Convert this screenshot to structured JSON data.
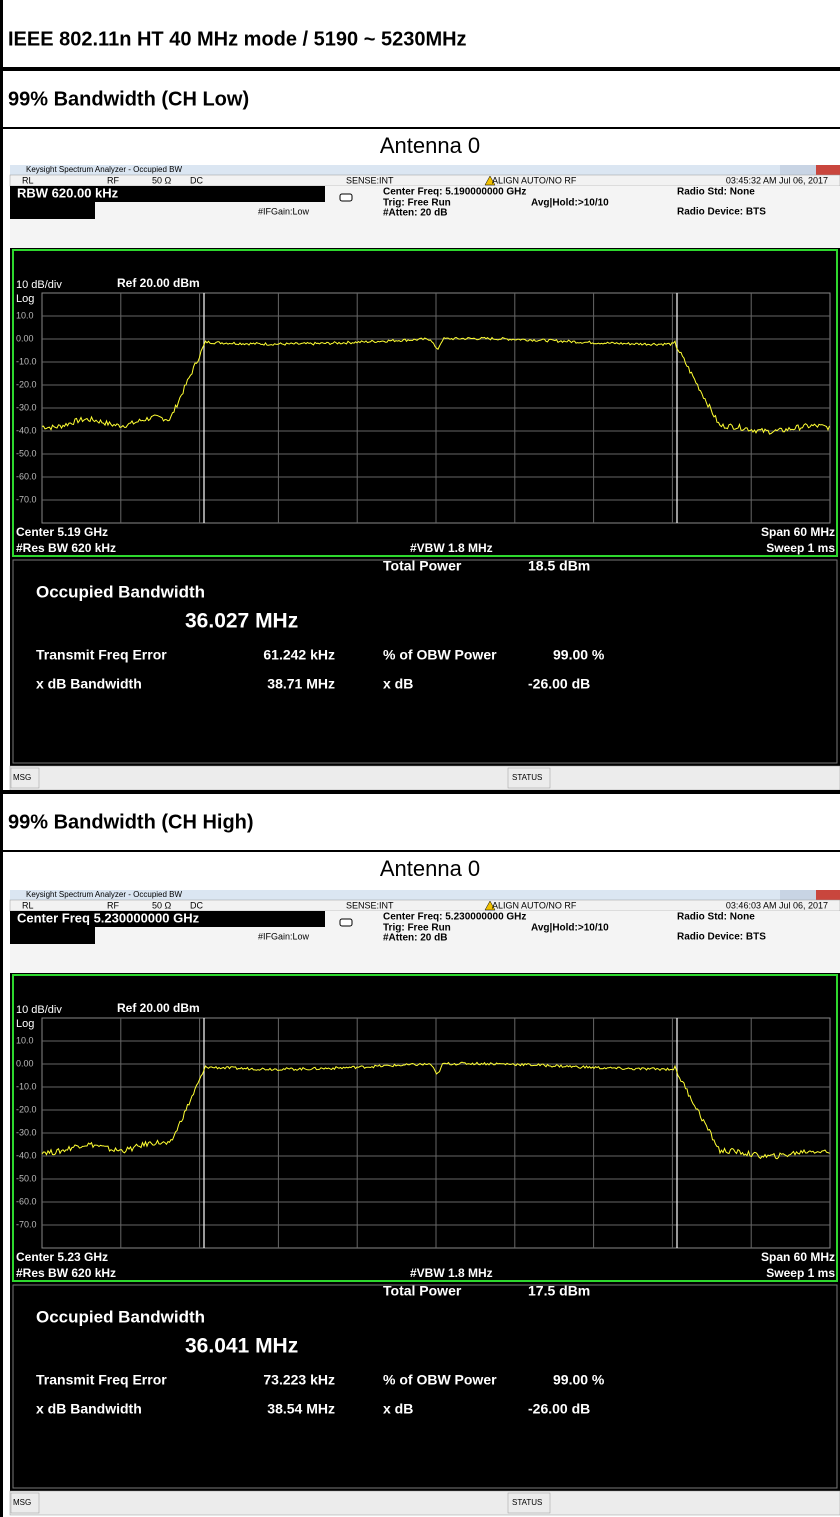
{
  "header": {
    "title": "IEEE 802.11n HT 40 MHz mode / 5190 ~ 5230MHz"
  },
  "sections": [
    {
      "heading": "99% Bandwidth (CH Low)",
      "caption": "Antenna 0",
      "window": {
        "title": "Keysight Spectrum Analyzer - Occupied BW",
        "rl": "RL",
        "rf": "RF",
        "impedance": "50 Ω",
        "coupling": "DC",
        "sense": "SENSE:INT",
        "align": "ALIGN AUTO/NO RF",
        "time": "03:45:32 AM Jul 06, 2017",
        "active": "RBW 620.00 kHz",
        "ifgain": "#IFGain:Low",
        "center_freq": "Center Freq: 5.190000000 GHz",
        "trig": "Trig: Free Run",
        "atten": "#Atten: 20 dB",
        "avg": "Avg|Hold:>10/10",
        "radio_std": "Radio Std: None",
        "radio_device": "Radio Device: BTS",
        "scale": "10 dB/div",
        "ref": "Ref 20.00 dBm",
        "log": "Log",
        "y_labels": [
          "10.0",
          "0.00",
          "-10.0",
          "-20.0",
          "-30.0",
          "-40.0",
          "-50.0",
          "-60.0",
          "-70.0"
        ],
        "center": "Center 5.19 GHz",
        "span": "Span 60 MHz",
        "res_bw": "#Res BW 620 kHz",
        "vbw": "#VBW 1.8 MHz",
        "sweep": "Sweep 1 ms",
        "results": {
          "obw_label": "Occupied Bandwidth",
          "obw": "36.027 MHz",
          "total_power_label": "Total Power",
          "total_power": "18.5 dBm",
          "tfe_label": "Transmit Freq Error",
          "tfe": "61.242 kHz",
          "pct_label": "% of OBW Power",
          "pct": "99.00 %",
          "xdb_bw_label": "x dB Bandwidth",
          "xdb_bw": "38.71 MHz",
          "xdb_label": "x dB",
          "xdb": "-26.00 dB"
        },
        "msg": "MSG",
        "status": "STATUS"
      }
    },
    {
      "heading": "99% Bandwidth (CH High)",
      "caption": "Antenna 0",
      "window": {
        "title": "Keysight Spectrum Analyzer - Occupied BW",
        "rl": "RL",
        "rf": "RF",
        "impedance": "50 Ω",
        "coupling": "DC",
        "sense": "SENSE:INT",
        "align": "ALIGN AUTO/NO RF",
        "time": "03:46:03 AM Jul 06, 2017",
        "active": "Center Freq 5.230000000 GHz",
        "ifgain": "#IFGain:Low",
        "center_freq": "Center Freq: 5.230000000 GHz",
        "trig": "Trig: Free Run",
        "atten": "#Atten: 20 dB",
        "avg": "Avg|Hold:>10/10",
        "radio_std": "Radio Std: None",
        "radio_device": "Radio Device: BTS",
        "scale": "10 dB/div",
        "ref": "Ref 20.00 dBm",
        "log": "Log",
        "y_labels": [
          "10.0",
          "0.00",
          "-10.0",
          "-20.0",
          "-30.0",
          "-40.0",
          "-50.0",
          "-60.0",
          "-70.0"
        ],
        "center": "Center 5.23 GHz",
        "span": "Span 60 MHz",
        "res_bw": "#Res BW 620 kHz",
        "vbw": "#VBW 1.8 MHz",
        "sweep": "Sweep 1 ms",
        "results": {
          "obw_label": "Occupied Bandwidth",
          "obw": "36.041 MHz",
          "total_power_label": "Total Power",
          "total_power": "17.5 dBm",
          "tfe_label": "Transmit Freq Error",
          "tfe": "73.223 kHz",
          "pct_label": "% of OBW Power",
          "pct": "99.00 %",
          "xdb_bw_label": "x dB Bandwidth",
          "xdb_bw": "38.54 MHz",
          "xdb_label": "x dB",
          "xdb": "-26.00 dB"
        },
        "msg": "MSG",
        "status": "STATUS"
      }
    }
  ]
}
